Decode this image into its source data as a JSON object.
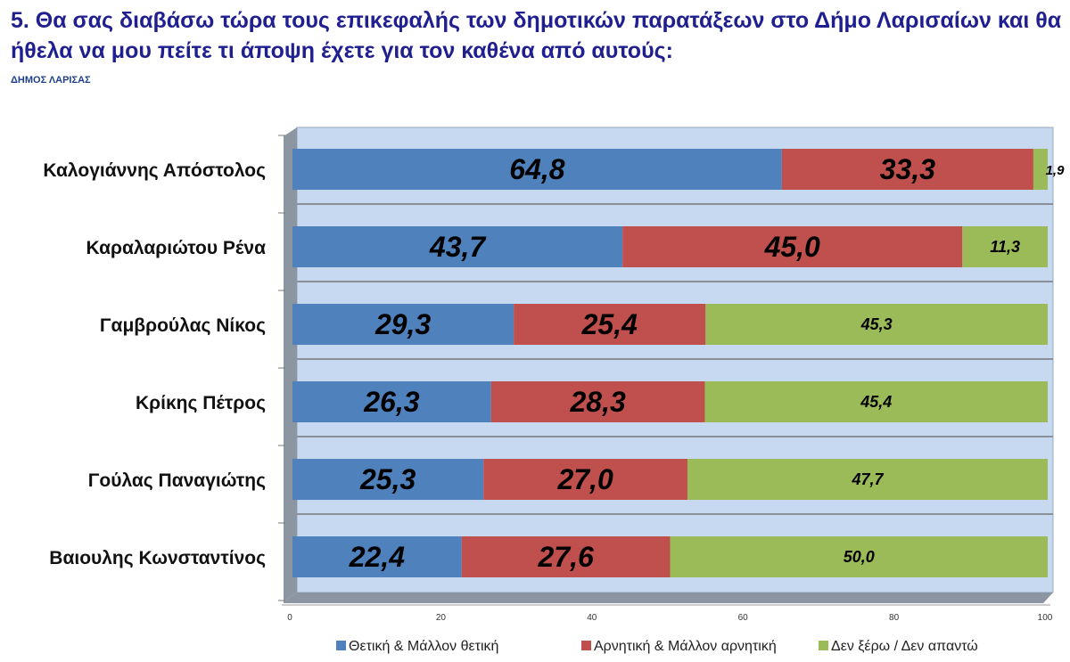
{
  "title": "5. Θα σας διαβάσω τώρα τους επικεφαλής των δημοτικών παρατάξεων στο Δήμο Λαρισαίων και θα ήθελα να μου πείτε τι άποψη έχετε για τον καθένα από αυτούς:",
  "subtitle": "ΔΗΜΟΣ ΛΑΡΙΣΑΣ",
  "chart_data": {
    "type": "bar",
    "orientation": "horizontal",
    "stacked": true,
    "categories": [
      "Καλογιάννης Απόστολος",
      "Καραλαριώτου Ρένα",
      "Γαμβρούλας Νίκος",
      "Κρίκης Πέτρος",
      "Γούλας Παναγιώτης",
      "Βαιουλης Κωνσταντίνος"
    ],
    "series": [
      {
        "name": "Θετική & Μάλλον θετική",
        "color": "#4f81bd",
        "values": [
          64.8,
          43.7,
          29.3,
          26.3,
          25.3,
          22.4
        ],
        "labels": [
          "64,8",
          "43,7",
          "29,3",
          "26,3",
          "25,3",
          "22,4"
        ]
      },
      {
        "name": "Αρνητική & Μάλλον αρνητική",
        "color": "#c0504d",
        "values": [
          33.3,
          45.0,
          25.4,
          28.3,
          27.0,
          27.6
        ],
        "labels": [
          "33,3",
          "45,0",
          "25,4",
          "28,3",
          "27,0",
          "27,6"
        ]
      },
      {
        "name": "Δεν ξέρω / Δεν απαντώ",
        "color": "#9bbb59",
        "values": [
          1.9,
          11.3,
          45.3,
          45.4,
          47.7,
          50.0
        ],
        "labels": [
          "1,9",
          "11,3",
          "45,3",
          "45,4",
          "47,7",
          "50,0"
        ]
      }
    ],
    "xlim": [
      0,
      100
    ],
    "xticks": [
      "0",
      "20",
      "40",
      "60",
      "80",
      "100"
    ],
    "legend": "bottom",
    "grid": false
  }
}
